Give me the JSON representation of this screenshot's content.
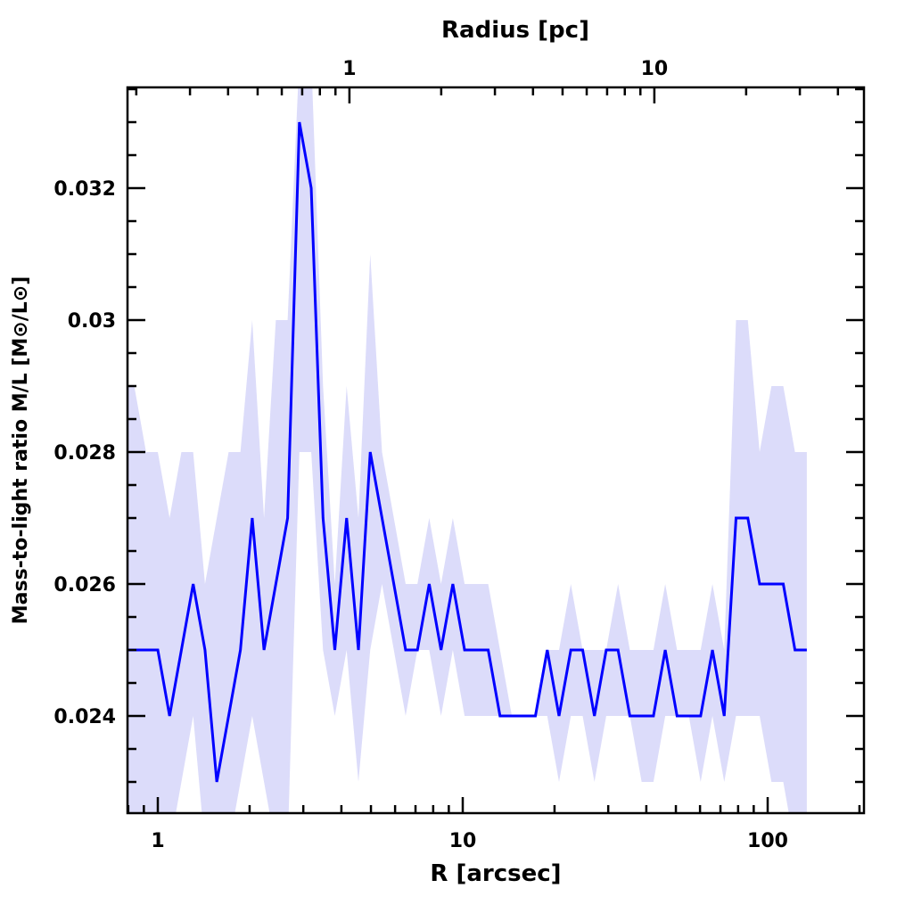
{
  "chart_data": {
    "type": "line",
    "title": "",
    "xlabel": "R [arcsec]",
    "x2label": "Radius [pc]",
    "ylabel": "Mass-to-light ratio M/L [M⊙/L⊙]",
    "xscale": "log",
    "xlim": [
      0.8,
      207
    ],
    "ylim": [
      0.0225,
      0.0335
    ],
    "pc_to_arcsec": 4.25,
    "x_ticks": [
      {
        "v": 1,
        "label": "1"
      },
      {
        "v": 10,
        "label": "10"
      },
      {
        "v": 100,
        "label": "100"
      }
    ],
    "x2_ticks": [
      {
        "v": 1,
        "label": "1"
      },
      {
        "v": 10,
        "label": "10"
      }
    ],
    "y_ticks": [
      {
        "v": 0.024,
        "label": "0.024"
      },
      {
        "v": 0.026,
        "label": "0.026"
      },
      {
        "v": 0.028,
        "label": "0.028"
      },
      {
        "v": 0.03,
        "label": "0.03"
      },
      {
        "v": 0.032,
        "label": "0.032"
      }
    ],
    "grid": false,
    "colors": {
      "line": "#0000ff",
      "band": "#dcdcfa",
      "axis": "#000000"
    },
    "series": [
      {
        "name": "M/L",
        "x": [
          0.765,
          0.837,
          0.915,
          1.0,
          1.093,
          1.195,
          1.306,
          1.428,
          1.561,
          1.707,
          1.866,
          2.04,
          2.23,
          2.438,
          2.665,
          2.913,
          3.185,
          3.482,
          3.806,
          4.161,
          4.549,
          4.973,
          5.436,
          5.943,
          6.497,
          7.102,
          7.764,
          8.488,
          9.279,
          10.14,
          11.09,
          12.12,
          13.25,
          14.49,
          15.84,
          17.31,
          18.93,
          20.69,
          22.62,
          24.73,
          27.03,
          29.55,
          32.31,
          35.32,
          38.61,
          42.21,
          46.14,
          50.44,
          55.14,
          60.28,
          65.9,
          72.04,
          78.75,
          86.09,
          94.11,
          102.9,
          112.5,
          122.9,
          134.4
        ],
        "y": [
          0.025,
          0.025,
          0.025,
          0.025,
          0.024,
          0.025,
          0.026,
          0.025,
          0.023,
          0.024,
          0.025,
          0.027,
          0.025,
          0.026,
          0.027,
          0.033,
          0.032,
          0.027,
          0.025,
          0.027,
          0.025,
          0.028,
          0.027,
          0.026,
          0.025,
          0.025,
          0.026,
          0.025,
          0.026,
          0.025,
          0.025,
          0.025,
          0.024,
          0.024,
          0.024,
          0.024,
          0.025,
          0.024,
          0.025,
          0.025,
          0.024,
          0.025,
          0.025,
          0.024,
          0.024,
          0.024,
          0.025,
          0.024,
          0.024,
          0.024,
          0.025,
          0.024,
          0.027,
          0.027,
          0.026,
          0.026,
          0.026,
          0.025,
          0.025
        ],
        "upper": [
          0.029,
          0.029,
          0.028,
          0.028,
          0.027,
          0.028,
          0.028,
          0.026,
          0.027,
          0.028,
          0.028,
          0.03,
          0.027,
          0.03,
          0.03,
          0.034,
          0.034,
          0.029,
          0.026,
          0.029,
          0.027,
          0.031,
          0.028,
          0.027,
          0.026,
          0.026,
          0.027,
          0.026,
          0.027,
          0.026,
          0.026,
          0.026,
          0.025,
          0.024,
          0.024,
          0.024,
          0.025,
          0.025,
          0.026,
          0.025,
          0.025,
          0.025,
          0.026,
          0.025,
          0.025,
          0.025,
          0.026,
          0.025,
          0.025,
          0.025,
          0.026,
          0.025,
          0.03,
          0.03,
          0.028,
          0.029,
          0.029,
          0.028,
          0.028
        ],
        "lower": [
          0.022,
          0.022,
          0.022,
          0.022,
          0.022,
          0.023,
          0.024,
          0.022,
          0.022,
          0.022,
          0.023,
          0.024,
          0.023,
          0.022,
          0.022,
          0.028,
          0.028,
          0.025,
          0.024,
          0.025,
          0.023,
          0.025,
          0.026,
          0.025,
          0.024,
          0.025,
          0.025,
          0.024,
          0.025,
          0.024,
          0.024,
          0.024,
          0.024,
          0.024,
          0.024,
          0.024,
          0.024,
          0.023,
          0.024,
          0.024,
          0.023,
          0.024,
          0.024,
          0.024,
          0.023,
          0.023,
          0.024,
          0.024,
          0.024,
          0.023,
          0.024,
          0.023,
          0.024,
          0.024,
          0.024,
          0.023,
          0.023,
          0.022,
          0.022
        ]
      }
    ]
  }
}
